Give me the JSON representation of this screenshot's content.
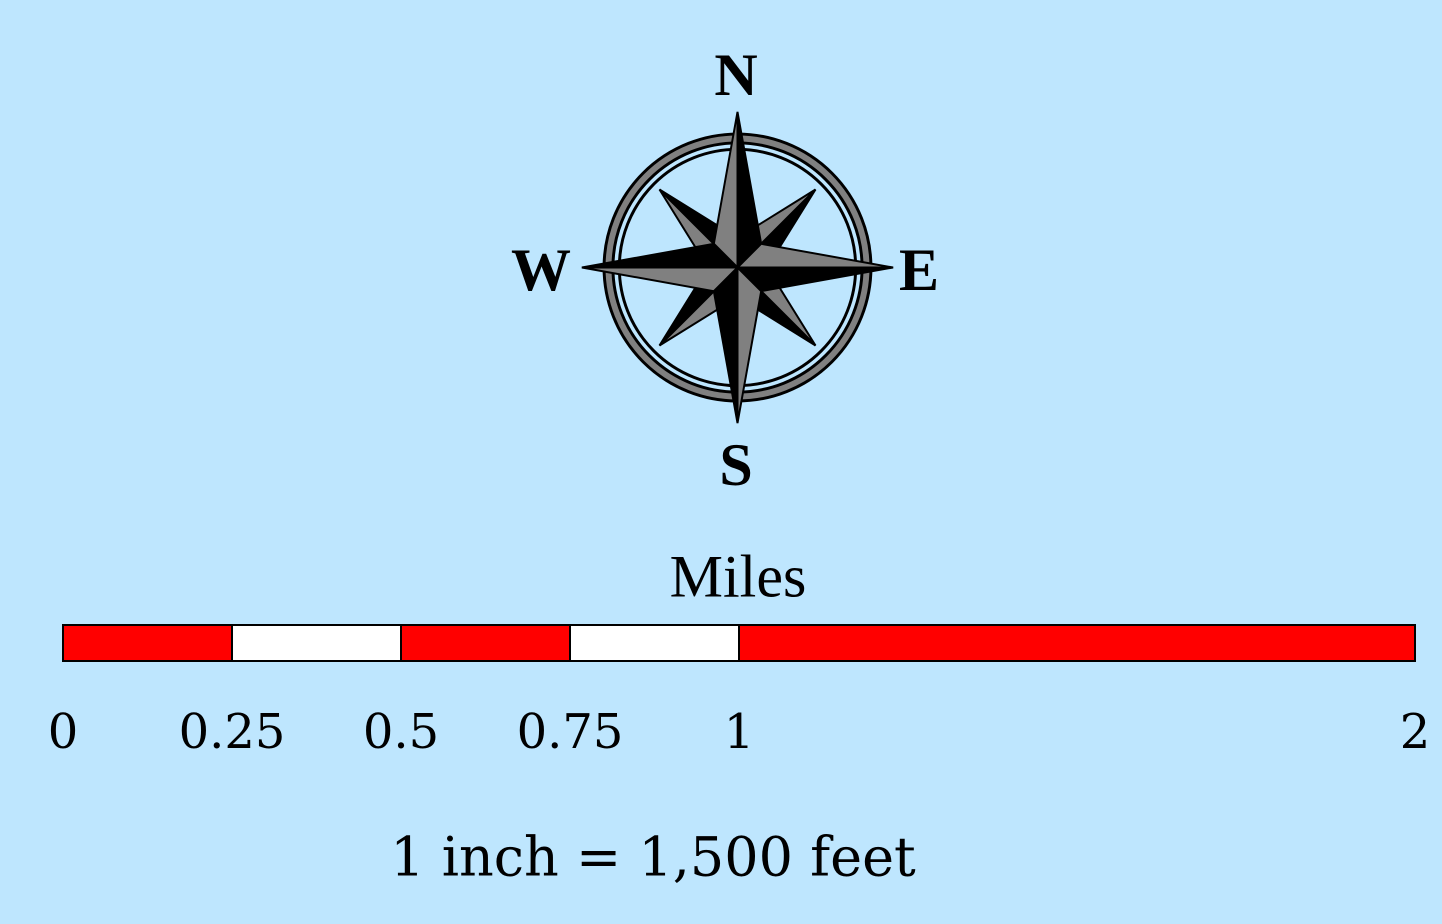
{
  "compass": {
    "north": "N",
    "south": "S",
    "east": "E",
    "west": "W"
  },
  "scale_bar": {
    "units_label": "Miles",
    "max_value": 2,
    "segments": [
      {
        "from": 0,
        "to": 0.25,
        "color": "#ff0000"
      },
      {
        "from": 0.25,
        "to": 0.5,
        "color": "#ffffff"
      },
      {
        "from": 0.5,
        "to": 0.75,
        "color": "#ff0000"
      },
      {
        "from": 0.75,
        "to": 1,
        "color": "#ffffff"
      },
      {
        "from": 1,
        "to": 2,
        "color": "#ff0000"
      }
    ],
    "ticks": [
      {
        "value": 0,
        "label": "0"
      },
      {
        "value": 0.25,
        "label": "0.25"
      },
      {
        "value": 0.5,
        "label": "0.5"
      },
      {
        "value": 0.75,
        "label": "0.75"
      },
      {
        "value": 1,
        "label": "1"
      },
      {
        "value": 2,
        "label": "2"
      }
    ]
  },
  "scale_statement": "1 inch = 1,500 feet",
  "colors": {
    "background": "#bee6fe",
    "bar_primary": "#ff0000",
    "bar_secondary": "#ffffff",
    "rose_dark": "#000000",
    "rose_light": "#808080"
  }
}
